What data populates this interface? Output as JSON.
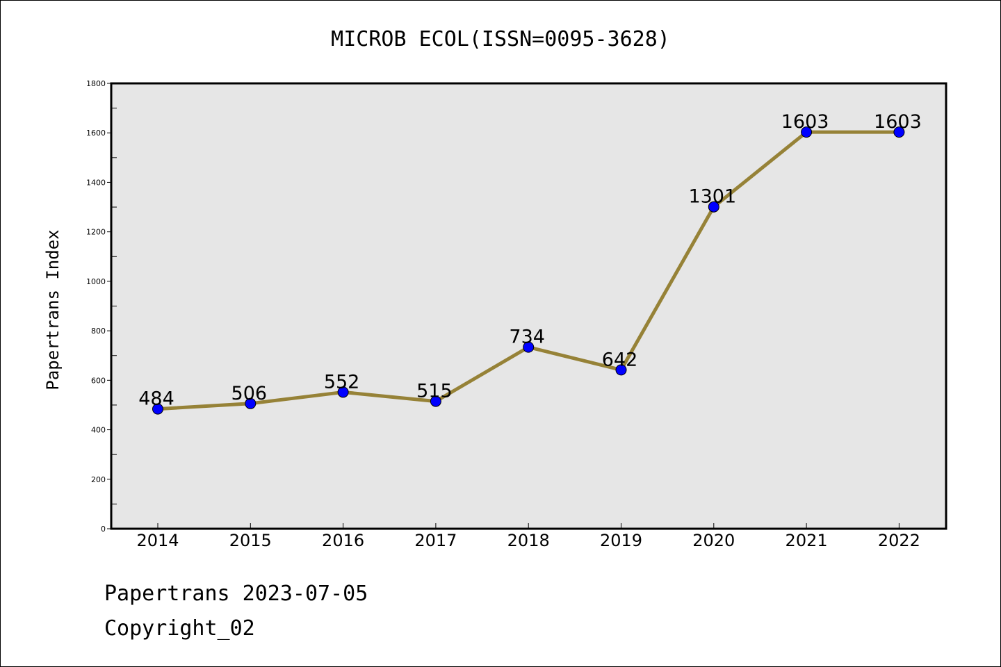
{
  "chart_data": {
    "type": "line",
    "title": "MICROB ECOL(ISSN=0095-3628)",
    "xlabel": "",
    "ylabel": "Papertrans Index",
    "categories": [
      "2014",
      "2015",
      "2016",
      "2017",
      "2018",
      "2019",
      "2020",
      "2021",
      "2022"
    ],
    "series": [
      {
        "values": [
          484,
          506,
          552,
          515,
          734,
          642,
          1301,
          1603,
          1603
        ]
      }
    ],
    "data_labels": [
      "484",
      "506",
      "552",
      "515",
      "734",
      "642",
      "1301",
      "1603",
      "1603"
    ],
    "ylim": [
      0,
      1800
    ],
    "yticks": [
      0,
      200,
      400,
      600,
      800,
      1000,
      1200,
      1400,
      1600,
      1800
    ],
    "ytick_labels": [
      "0",
      "200",
      "400",
      "600",
      "800",
      "1000",
      "1200",
      "1400",
      "1600",
      "1800"
    ],
    "grid": false,
    "line_color": "#968237",
    "marker_color": "#0000ff",
    "plot_background": "#e6e6e6"
  },
  "footer": {
    "line1": "Papertrans 2023-07-05",
    "line2": "Copyright_02"
  }
}
